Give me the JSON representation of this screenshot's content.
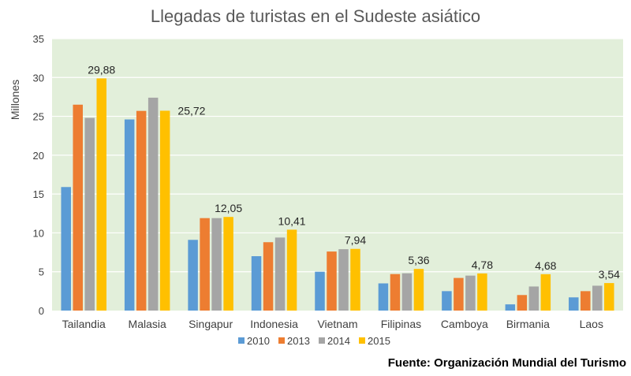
{
  "chart_data": {
    "type": "bar",
    "title": "Llegadas de turistas en el Sudeste asiático",
    "ylabel": "Millones",
    "xlabel": "",
    "ylim": [
      0,
      35
    ],
    "yticks": [
      0,
      5,
      10,
      15,
      20,
      25,
      30,
      35
    ],
    "grid": true,
    "legend_position": "bottom",
    "categories": [
      "Tailandia",
      "Malasia",
      "Singapur",
      "Indonesia",
      "Vietnam",
      "Filipinas",
      "Camboya",
      "Birmania",
      "Laos"
    ],
    "series": [
      {
        "name": "2010",
        "color": "#5B9BD5",
        "values": [
          15.9,
          24.6,
          9.1,
          7.0,
          5.0,
          3.5,
          2.5,
          0.8,
          1.7
        ]
      },
      {
        "name": "2013",
        "color": "#ED7D31",
        "values": [
          26.5,
          25.7,
          11.9,
          8.8,
          7.6,
          4.7,
          4.2,
          2.0,
          2.5
        ]
      },
      {
        "name": "2014",
        "color": "#A5A5A5",
        "values": [
          24.8,
          27.4,
          11.9,
          9.4,
          7.9,
          4.8,
          4.5,
          3.1,
          3.2
        ]
      },
      {
        "name": "2015",
        "color": "#FFC000",
        "values": [
          29.88,
          25.72,
          12.05,
          10.41,
          7.94,
          5.36,
          4.78,
          4.68,
          3.54
        ]
      }
    ],
    "data_labels": [
      {
        "category": "Tailandia",
        "series": "2015",
        "text": "29,88"
      },
      {
        "category": "Malasia",
        "series": "2015",
        "text": "25,72"
      },
      {
        "category": "Singapur",
        "series": "2015",
        "text": "12,05"
      },
      {
        "category": "Indonesia",
        "series": "2015",
        "text": "10,41"
      },
      {
        "category": "Vietnam",
        "series": "2015",
        "text": "7,94"
      },
      {
        "category": "Filipinas",
        "series": "2015",
        "text": "5,36"
      },
      {
        "category": "Camboya",
        "series": "2015",
        "text": "4,78"
      },
      {
        "category": "Birmania",
        "series": "2015",
        "text": "4,68"
      },
      {
        "category": "Laos",
        "series": "2015",
        "text": "3,54"
      }
    ],
    "colors": {
      "plot_background": "#E2EFDA",
      "gridline": "#FFFFFF",
      "axis_text": "#404040"
    }
  },
  "source": "Fuente: Organización Mundial del Turismo"
}
